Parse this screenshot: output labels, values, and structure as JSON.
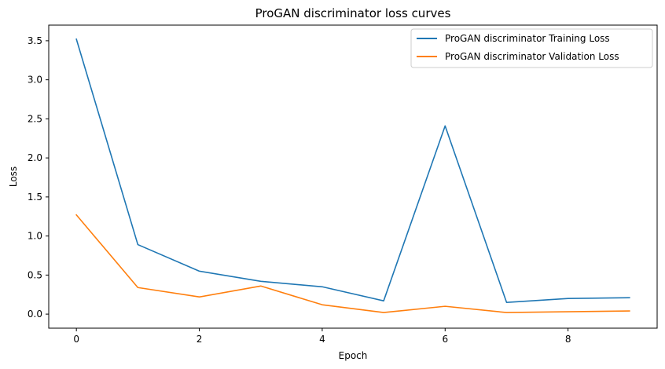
{
  "chart_data": {
    "type": "line",
    "title": "ProGAN discriminator loss curves",
    "xlabel": "Epoch",
    "ylabel": "Loss",
    "xlim": [
      -0.45,
      9.45
    ],
    "ylim": [
      -0.18,
      3.7
    ],
    "xticks": [
      0,
      2,
      4,
      6,
      8
    ],
    "xtick_labels": [
      "0",
      "2",
      "4",
      "6",
      "8"
    ],
    "yticks": [
      0.0,
      0.5,
      1.0,
      1.5,
      2.0,
      2.5,
      3.0,
      3.5
    ],
    "ytick_labels": [
      "0.0",
      "0.5",
      "1.0",
      "1.5",
      "2.0",
      "2.5",
      "3.0",
      "3.5"
    ],
    "grid": false,
    "legend_position": "top-right",
    "x": [
      0,
      1,
      2,
      3,
      4,
      5,
      6,
      7,
      8,
      9
    ],
    "series": [
      {
        "name": "ProGAN discriminator Training Loss",
        "color": "#1f77b4",
        "values": [
          3.52,
          0.89,
          0.55,
          0.42,
          0.35,
          0.17,
          2.41,
          0.15,
          0.2,
          0.21
        ]
      },
      {
        "name": "ProGAN discriminator Validation Loss",
        "color": "#ff7f0e",
        "values": [
          1.27,
          0.34,
          0.22,
          0.36,
          0.12,
          0.02,
          0.1,
          0.02,
          0.03,
          0.04
        ]
      }
    ]
  }
}
